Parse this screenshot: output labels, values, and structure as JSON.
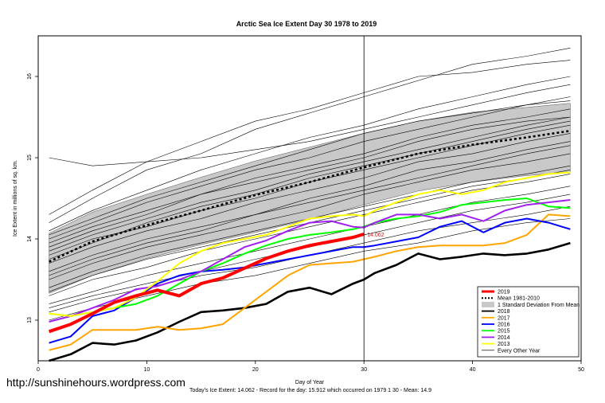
{
  "chart_data": {
    "type": "line",
    "title": "Arctic Sea Ice Extent Day 30 1978 to 2019",
    "xlabel": "Day of Year",
    "ylabel": "Ice Extent in millions of sq. km.",
    "xlim": [
      0,
      50
    ],
    "ylim": [
      12.5,
      16.5
    ],
    "xticks": [
      0,
      10,
      20,
      30,
      40,
      50
    ],
    "yticks": [
      13,
      14,
      15,
      16
    ],
    "current_day_marker": 30,
    "current_value_label": "14.062",
    "legend_position": "bottom-right",
    "legend": [
      {
        "label": "2019",
        "color": "#ff0000",
        "kind": "line"
      },
      {
        "label": "Mean 1981-2010",
        "color": "#000000",
        "kind": "dotted"
      },
      {
        "label": "1 Standard Deviation From Mean",
        "color": "#c8c8c8",
        "kind": "box"
      },
      {
        "label": "2018",
        "color": "#000000",
        "kind": "line"
      },
      {
        "label": "2017",
        "color": "#ffa500",
        "kind": "line"
      },
      {
        "label": "2016",
        "color": "#0000ff",
        "kind": "line"
      },
      {
        "label": "2015",
        "color": "#00ff00",
        "kind": "line"
      },
      {
        "label": "2014",
        "color": "#a020f0",
        "kind": "line"
      },
      {
        "label": "2013",
        "color": "#ffff00",
        "kind": "line"
      },
      {
        "label": "Every Other Year",
        "color": "#000000",
        "kind": "thin"
      }
    ],
    "mean": {
      "x": [
        1,
        5,
        10,
        15,
        20,
        25,
        30,
        35,
        40,
        45,
        49
      ],
      "y": [
        13.72,
        13.97,
        14.17,
        14.35,
        14.54,
        14.7,
        14.88,
        15.05,
        15.16,
        15.25,
        15.33
      ]
    },
    "std_band": {
      "x": [
        1,
        5,
        10,
        15,
        20,
        25,
        30,
        35,
        40,
        45,
        49
      ],
      "upper": [
        14.07,
        14.33,
        14.55,
        14.76,
        14.96,
        15.13,
        15.3,
        15.45,
        15.56,
        15.62,
        15.67
      ],
      "lower": [
        13.33,
        13.55,
        13.76,
        13.93,
        14.08,
        14.24,
        14.42,
        14.59,
        14.7,
        14.78,
        14.82
      ]
    },
    "series": [
      {
        "name": "2018",
        "color": "#000000",
        "width": 2.6,
        "x": [
          1,
          3,
          5,
          7,
          9,
          11,
          13,
          15,
          17,
          19,
          21,
          23,
          25,
          27,
          29,
          30,
          31,
          33,
          35,
          37,
          39,
          41,
          43,
          45,
          47,
          49
        ],
        "y": [
          12.5,
          12.58,
          12.72,
          12.7,
          12.75,
          12.85,
          12.98,
          13.1,
          13.12,
          13.15,
          13.2,
          13.35,
          13.4,
          13.32,
          13.45,
          13.5,
          13.58,
          13.68,
          13.82,
          13.75,
          13.78,
          13.82,
          13.8,
          13.82,
          13.87,
          13.95
        ]
      },
      {
        "name": "2017",
        "color": "#ffa500",
        "width": 2.0,
        "x": [
          1,
          3,
          5,
          7,
          9,
          11,
          13,
          15,
          17,
          19,
          21,
          23,
          25,
          27,
          29,
          30,
          31,
          33,
          35,
          37,
          39,
          41,
          43,
          45,
          47,
          49
        ],
        "y": [
          12.63,
          12.7,
          12.88,
          12.88,
          12.88,
          12.92,
          12.88,
          12.9,
          12.95,
          13.15,
          13.35,
          13.55,
          13.68,
          13.7,
          13.72,
          13.75,
          13.78,
          13.85,
          13.9,
          13.92,
          13.92,
          13.92,
          13.95,
          14.05,
          14.3,
          14.28
        ]
      },
      {
        "name": "2016",
        "color": "#0000ff",
        "width": 2.0,
        "x": [
          1,
          3,
          5,
          7,
          9,
          11,
          13,
          15,
          17,
          19,
          21,
          23,
          25,
          27,
          29,
          30,
          31,
          33,
          35,
          37,
          39,
          41,
          43,
          45,
          47,
          49
        ],
        "y": [
          12.72,
          12.8,
          13.05,
          13.12,
          13.28,
          13.45,
          13.55,
          13.6,
          13.62,
          13.65,
          13.7,
          13.75,
          13.8,
          13.85,
          13.9,
          13.9,
          13.92,
          13.97,
          14.02,
          14.15,
          14.22,
          14.08,
          14.2,
          14.25,
          14.2,
          14.12
        ]
      },
      {
        "name": "2015",
        "color": "#00ff00",
        "width": 2.0,
        "x": [
          1,
          3,
          5,
          7,
          9,
          11,
          13,
          15,
          17,
          19,
          21,
          23,
          25,
          27,
          29,
          30,
          31,
          33,
          35,
          37,
          39,
          41,
          43,
          45,
          47,
          49
        ],
        "y": [
          13.08,
          13.05,
          13.1,
          13.15,
          13.2,
          13.3,
          13.45,
          13.6,
          13.7,
          13.82,
          13.92,
          14.0,
          14.05,
          14.08,
          14.12,
          14.15,
          14.2,
          14.25,
          14.28,
          14.33,
          14.42,
          14.45,
          14.48,
          14.5,
          14.4,
          14.38
        ]
      },
      {
        "name": "2014",
        "color": "#a020f0",
        "width": 2.0,
        "x": [
          1,
          3,
          5,
          7,
          9,
          11,
          13,
          15,
          17,
          19,
          21,
          23,
          25,
          27,
          29,
          30,
          31,
          33,
          35,
          37,
          39,
          41,
          43,
          45,
          47,
          49
        ],
        "y": [
          12.98,
          13.05,
          13.15,
          13.25,
          13.38,
          13.42,
          13.5,
          13.6,
          13.75,
          13.9,
          13.98,
          14.1,
          14.2,
          14.22,
          14.15,
          14.14,
          14.2,
          14.3,
          14.3,
          14.25,
          14.3,
          14.22,
          14.35,
          14.42,
          14.45,
          14.48
        ]
      },
      {
        "name": "2013",
        "color": "#ffff00",
        "width": 2.0,
        "x": [
          1,
          3,
          5,
          7,
          9,
          11,
          13,
          15,
          17,
          19,
          21,
          23,
          25,
          27,
          29,
          30,
          31,
          33,
          35,
          37,
          39,
          41,
          43,
          45,
          47,
          49
        ],
        "y": [
          13.08,
          13.05,
          13.1,
          13.15,
          13.28,
          13.48,
          13.7,
          13.85,
          13.95,
          14.0,
          14.05,
          14.15,
          14.25,
          14.28,
          14.3,
          14.28,
          14.35,
          14.45,
          14.55,
          14.6,
          14.55,
          14.6,
          14.7,
          14.75,
          14.8,
          14.82
        ]
      },
      {
        "name": "2019",
        "color": "#ff0000",
        "width": 4.0,
        "x": [
          1,
          3,
          5,
          7,
          9,
          11,
          13,
          15,
          17,
          19,
          21,
          23,
          25,
          27,
          29,
          30
        ],
        "y": [
          12.86,
          12.95,
          13.08,
          13.22,
          13.3,
          13.37,
          13.3,
          13.45,
          13.52,
          13.64,
          13.76,
          13.85,
          13.92,
          13.97,
          14.02,
          14.06
        ]
      }
    ],
    "other_years": [
      {
        "x": [
          1,
          5,
          10,
          15,
          20,
          25,
          30,
          35,
          40,
          45,
          49
        ],
        "y": [
          14.2,
          14.5,
          14.85,
          15.05,
          15.35,
          15.55,
          15.75,
          15.95,
          16.15,
          16.25,
          16.35
        ]
      },
      {
        "x": [
          1,
          5,
          10,
          15,
          20,
          25,
          30,
          35,
          40,
          45,
          49
        ],
        "y": [
          14.3,
          14.6,
          14.95,
          15.2,
          15.45,
          15.6,
          15.8,
          16.0,
          16.05,
          16.15,
          16.2
        ]
      },
      {
        "x": [
          1,
          5,
          10,
          15,
          20,
          25,
          30,
          35,
          40,
          45,
          49
        ],
        "y": [
          15.0,
          14.9,
          14.95,
          15.0,
          15.1,
          15.2,
          15.35,
          15.5,
          15.65,
          15.8,
          15.9
        ]
      },
      {
        "x": [
          1,
          5,
          10,
          15,
          20,
          25,
          30,
          35,
          40,
          45,
          49
        ],
        "y": [
          14.1,
          14.35,
          14.6,
          14.85,
          15.05,
          15.25,
          15.4,
          15.6,
          15.75,
          15.9,
          16.0
        ]
      },
      {
        "x": [
          1,
          5,
          10,
          15,
          20,
          25,
          30,
          35,
          40,
          45,
          49
        ],
        "y": [
          14.0,
          14.2,
          14.45,
          14.65,
          14.85,
          15.0,
          15.2,
          15.35,
          15.5,
          15.65,
          15.75
        ]
      },
      {
        "x": [
          1,
          5,
          10,
          15,
          20,
          25,
          30,
          35,
          40,
          45,
          49
        ],
        "y": [
          13.95,
          14.15,
          14.35,
          14.55,
          14.75,
          14.9,
          15.05,
          15.25,
          15.4,
          15.5,
          15.6
        ]
      },
      {
        "x": [
          1,
          5,
          10,
          15,
          20,
          25,
          30,
          35,
          40,
          45,
          49
        ],
        "y": [
          13.85,
          14.05,
          14.25,
          14.45,
          14.6,
          14.8,
          14.95,
          15.1,
          15.25,
          15.4,
          15.5
        ]
      },
      {
        "x": [
          1,
          5,
          10,
          15,
          20,
          25,
          30,
          35,
          40,
          45,
          49
        ],
        "y": [
          13.8,
          14.0,
          14.15,
          14.35,
          14.5,
          14.7,
          14.85,
          15.0,
          15.15,
          15.3,
          15.4
        ]
      },
      {
        "x": [
          1,
          5,
          10,
          15,
          20,
          25,
          30,
          35,
          40,
          45,
          49
        ],
        "y": [
          13.7,
          13.9,
          14.1,
          14.25,
          14.45,
          14.6,
          14.75,
          14.95,
          15.05,
          15.2,
          15.3
        ]
      },
      {
        "x": [
          1,
          5,
          10,
          15,
          20,
          25,
          30,
          35,
          40,
          45,
          49
        ],
        "y": [
          13.6,
          13.8,
          14.0,
          14.15,
          14.3,
          14.5,
          14.65,
          14.85,
          14.95,
          15.1,
          15.2
        ]
      },
      {
        "x": [
          1,
          5,
          10,
          15,
          20,
          25,
          30,
          35,
          40,
          45,
          49
        ],
        "y": [
          13.5,
          13.7,
          13.9,
          14.05,
          14.2,
          14.35,
          14.55,
          14.7,
          14.85,
          14.95,
          15.05
        ]
      },
      {
        "x": [
          1,
          5,
          10,
          15,
          20,
          25,
          30,
          35,
          40,
          45,
          49
        ],
        "y": [
          13.4,
          13.6,
          13.8,
          13.95,
          14.1,
          14.25,
          14.4,
          14.55,
          14.7,
          14.8,
          14.9
        ]
      },
      {
        "x": [
          1,
          5,
          10,
          15,
          20,
          25,
          30,
          35,
          40,
          45,
          49
        ],
        "y": [
          13.3,
          13.5,
          13.65,
          13.85,
          14.0,
          14.15,
          14.3,
          14.45,
          14.6,
          14.7,
          14.8
        ]
      },
      {
        "x": [
          1,
          5,
          10,
          15,
          20,
          25,
          30,
          35,
          40,
          45,
          49
        ],
        "y": [
          13.2,
          13.35,
          13.55,
          13.7,
          13.85,
          14.0,
          14.15,
          14.3,
          14.45,
          14.55,
          14.65
        ]
      },
      {
        "x": [
          1,
          5,
          10,
          15,
          20,
          25,
          30,
          35,
          40,
          45,
          49
        ],
        "y": [
          13.15,
          13.3,
          13.45,
          13.6,
          13.75,
          13.9,
          14.05,
          14.2,
          14.35,
          14.45,
          14.55
        ]
      },
      {
        "x": [
          1,
          5,
          10,
          15,
          20,
          25,
          30,
          35,
          40,
          45,
          49
        ],
        "y": [
          13.1,
          13.25,
          13.4,
          13.55,
          13.65,
          13.8,
          13.95,
          14.1,
          14.2,
          14.3,
          14.4
        ]
      },
      {
        "x": [
          1,
          5,
          10,
          15,
          20,
          25,
          30,
          35,
          40,
          45,
          49
        ],
        "y": [
          13.0,
          13.15,
          13.3,
          13.45,
          13.55,
          13.7,
          13.85,
          13.95,
          14.1,
          14.2,
          14.25
        ]
      },
      {
        "x": [
          1,
          5,
          10,
          15,
          20,
          25,
          30,
          35,
          40,
          45,
          49
        ],
        "y": [
          14.05,
          14.25,
          14.5,
          14.7,
          14.9,
          15.1,
          15.3,
          15.45,
          15.55,
          15.65,
          15.7
        ]
      },
      {
        "x": [
          1,
          5,
          10,
          15,
          20,
          25,
          30,
          35,
          40,
          45,
          49
        ],
        "y": [
          13.9,
          14.1,
          14.3,
          14.55,
          14.7,
          14.85,
          15.0,
          15.2,
          15.35,
          15.45,
          15.5
        ]
      },
      {
        "x": [
          1,
          5,
          10,
          15,
          20,
          25,
          30,
          35,
          40,
          45,
          49
        ],
        "y": [
          13.75,
          13.95,
          14.2,
          14.4,
          14.55,
          14.75,
          14.9,
          15.05,
          15.2,
          15.35,
          15.45
        ]
      },
      {
        "x": [
          1,
          5,
          10,
          15,
          20,
          25,
          30,
          35,
          40,
          45,
          49
        ],
        "y": [
          13.55,
          13.75,
          13.95,
          14.1,
          14.3,
          14.45,
          14.6,
          14.75,
          14.9,
          15.05,
          15.15
        ]
      },
      {
        "x": [
          1,
          5,
          10,
          15,
          20,
          25,
          30,
          35,
          40,
          45,
          49
        ],
        "y": [
          13.35,
          13.55,
          13.75,
          13.9,
          14.05,
          14.2,
          14.35,
          14.5,
          14.65,
          14.75,
          14.85
        ]
      }
    ]
  },
  "footer": {
    "url": "http://sunshinehours.wordpress.com",
    "summary": "Today's Ice Extent: 14.062   - Record for the day: 15.912 which occurred on 1979 1 30   - Mean: 14.9"
  }
}
